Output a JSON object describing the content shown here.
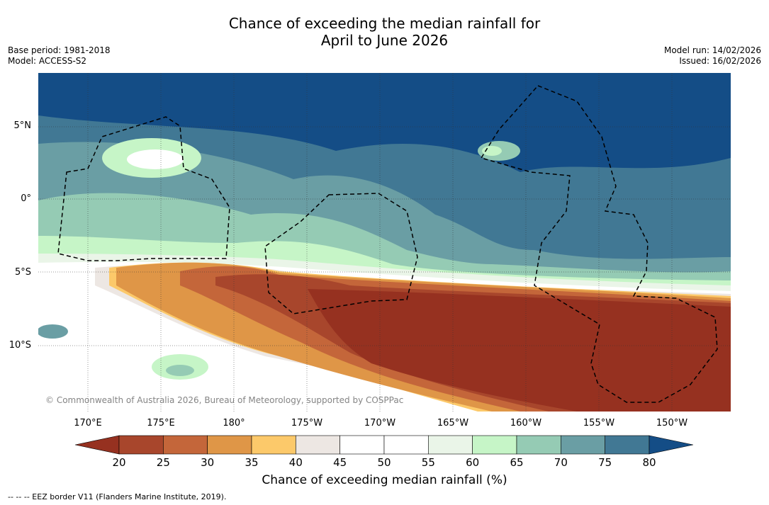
{
  "title": {
    "line1": "Chance of exceeding the median rainfall for",
    "line2": "April to June 2026"
  },
  "meta": {
    "base_period": "Base period: 1981-2018",
    "model": "Model: ACCESS-S2",
    "model_run": "Model run: 14/02/2026",
    "issued": "Issued: 16/02/2026"
  },
  "lat_labels": [
    "5°N",
    "0°",
    "5°S",
    "10°S"
  ],
  "lon_labels": [
    "170°E",
    "175°E",
    "180°",
    "175°W",
    "170°W",
    "165°W",
    "160°W",
    "155°W",
    "150°W"
  ],
  "copyright": "© Commonwealth of Australia 2026, Bureau of Meteorology, supported by COSPPac",
  "colorbar": {
    "title": "Chance of exceeding median rainfall (%)",
    "ticks": [
      "20",
      "25",
      "30",
      "35",
      "40",
      "45",
      "50",
      "55",
      "60",
      "65",
      "70",
      "75",
      "80"
    ],
    "colors": [
      "#963120",
      "#a8462c",
      "#c4663a",
      "#df9647",
      "#fcc96a",
      "#ede7e3",
      "#ffffff",
      "#ffffff",
      "#eaf5e8",
      "#c6f5c7",
      "#95cbb4",
      "#6a9ea4",
      "#417894",
      "#144d86"
    ]
  },
  "footnote": "-- -- -- EEZ border V11 (Flanders Marine Institute, 2019)."
}
